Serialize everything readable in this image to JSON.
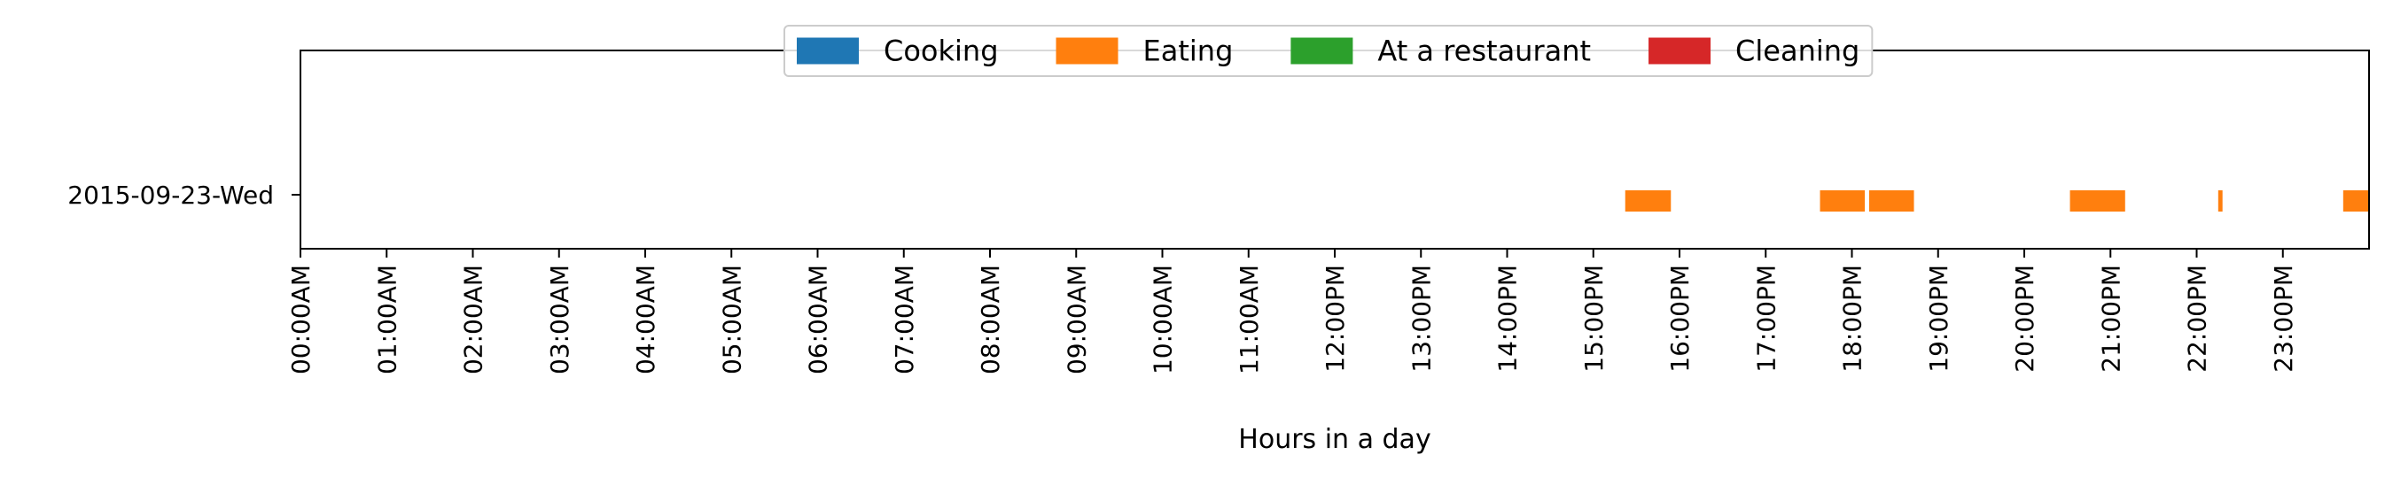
{
  "chart_data": {
    "type": "bar",
    "orientation": "horizontal-timeline",
    "title": "",
    "xlabel": "Hours in a day",
    "ylabel": "",
    "xlim": [
      0,
      24
    ],
    "x_ticks": [
      0,
      1,
      2,
      3,
      4,
      5,
      6,
      7,
      8,
      9,
      10,
      11,
      12,
      13,
      14,
      15,
      16,
      17,
      18,
      19,
      20,
      21,
      22,
      23
    ],
    "x_tick_labels": [
      "00:00AM",
      "01:00AM",
      "02:00AM",
      "03:00AM",
      "04:00AM",
      "05:00AM",
      "06:00AM",
      "07:00AM",
      "08:00AM",
      "09:00AM",
      "10:00AM",
      "11:00AM",
      "12:00PM",
      "13:00PM",
      "14:00PM",
      "15:00PM",
      "16:00PM",
      "17:00PM",
      "18:00PM",
      "19:00PM",
      "20:00PM",
      "21:00PM",
      "22:00PM",
      "23:00PM"
    ],
    "categories": [
      "2015-09-23-Wed"
    ],
    "grid": false,
    "legend_position": "top-center",
    "series": [
      {
        "name": "Cooking",
        "color": "#1f77b4",
        "intervals": []
      },
      {
        "name": "Eating",
        "color": "#ff7f0e",
        "intervals": [
          [
            15.37,
            15.9
          ],
          [
            17.63,
            18.15
          ],
          [
            18.2,
            18.72
          ],
          [
            20.53,
            21.17
          ],
          [
            22.25,
            22.3
          ],
          [
            23.7,
            24.0
          ]
        ]
      },
      {
        "name": "At a restaurant",
        "color": "#2ca02c",
        "intervals": []
      },
      {
        "name": "Cleaning",
        "color": "#d62728",
        "intervals": []
      }
    ]
  }
}
